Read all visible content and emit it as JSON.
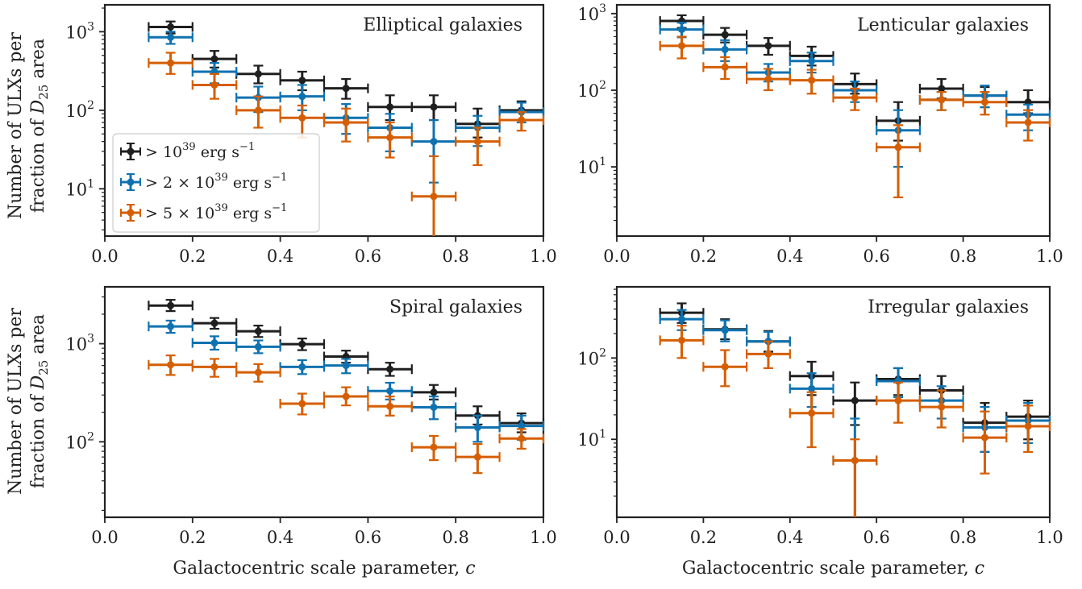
{
  "figure": {
    "ylabel_line1": "Number of ULXs per",
    "ylabel_line2_prefix": "fraction of ",
    "ylabel_line2_symbol": "D",
    "ylabel_line2_sub": "25",
    "ylabel_line2_suffix": " area"
  },
  "legend": [
    {
      "base": "> 10",
      "exp": "39",
      "unit": " erg s",
      "unit_exp": "−1"
    },
    {
      "base": "> 2 × 10",
      "exp": "39",
      "unit": " erg s",
      "unit_exp": "−1"
    },
    {
      "base": "> 5 × 10",
      "exp": "39",
      "unit": " erg s",
      "unit_exp": "−1"
    }
  ],
  "colors": {
    "black": "#1f1f1f",
    "blue": "#0f72b0",
    "orange": "#d55e00"
  },
  "chart_data": [
    {
      "type": "scatter",
      "title": "Elliptical galaxies",
      "xlabel": "",
      "ylabel": "Number of ULXs per fraction of D25 area",
      "x_ticks": [
        "0.0",
        "0.2",
        "0.4",
        "0.6",
        "0.8",
        "1.0"
      ],
      "xlim": [
        0,
        1
      ],
      "ylim": [
        2.5,
        2200
      ],
      "y_scale": "log",
      "y_ticks": [
        {
          "value": 10,
          "exp": "1"
        },
        {
          "value": 100,
          "exp": "2"
        },
        {
          "value": 1000,
          "exp": "3"
        }
      ],
      "legend_position": "middle-left",
      "series": [
        {
          "name": "> 10^39 erg s^-1",
          "color": "black",
          "x": [
            0.15,
            0.25,
            0.35,
            0.45,
            0.55,
            0.65,
            0.75,
            0.85,
            0.95
          ],
          "y": [
            1150,
            450,
            290,
            240,
            190,
            110,
            110,
            67,
            100
          ],
          "lo": [
            950,
            350,
            220,
            180,
            140,
            75,
            75,
            45,
            75
          ],
          "hi": [
            1350,
            570,
            370,
            310,
            250,
            155,
            155,
            105,
            130
          ]
        },
        {
          "name": "> 2 × 10^39 erg s^-1",
          "color": "blue",
          "x": [
            0.15,
            0.25,
            0.35,
            0.45,
            0.55,
            0.65,
            0.75,
            0.85,
            0.95
          ],
          "y": [
            850,
            310,
            145,
            150,
            80,
            60,
            40,
            60,
            95
          ],
          "lo": [
            700,
            220,
            95,
            100,
            50,
            30,
            12,
            35,
            70
          ],
          "hi": [
            1000,
            400,
            200,
            210,
            120,
            90,
            75,
            85,
            125
          ]
        },
        {
          "name": "> 5 × 10^39 erg s^-1",
          "color": "orange",
          "x": [
            0.15,
            0.25,
            0.35,
            0.45,
            0.55,
            0.65,
            0.75,
            0.85,
            0.95
          ],
          "y": [
            400,
            210,
            100,
            80,
            70,
            45,
            8,
            40,
            75
          ],
          "lo": [
            290,
            140,
            60,
            45,
            40,
            25,
            2,
            20,
            55
          ],
          "hi": [
            540,
            290,
            150,
            115,
            105,
            70,
            26,
            60,
            95
          ]
        }
      ]
    },
    {
      "type": "scatter",
      "title": "Lenticular galaxies",
      "xlabel": "",
      "ylabel": "",
      "x_ticks": [
        "0.0",
        "0.2",
        "0.4",
        "0.6",
        "0.8",
        "1.0"
      ],
      "xlim": [
        0,
        1
      ],
      "ylim": [
        1.25,
        1300
      ],
      "y_scale": "log",
      "y_ticks": [
        {
          "value": 10,
          "exp": "1"
        },
        {
          "value": 100,
          "exp": "2"
        },
        {
          "value": 1000,
          "exp": "3"
        }
      ],
      "series": [
        {
          "name": "> 10^39 erg s^-1",
          "color": "black",
          "x": [
            0.15,
            0.25,
            0.35,
            0.45,
            0.55,
            0.65,
            0.75,
            0.85,
            0.95
          ],
          "y": [
            800,
            530,
            380,
            280,
            120,
            40,
            105,
            85,
            70
          ],
          "lo": [
            650,
            420,
            290,
            210,
            90,
            22,
            78,
            60,
            50
          ],
          "hi": [
            950,
            650,
            480,
            370,
            165,
            70,
            140,
            110,
            100
          ]
        },
        {
          "name": "> 2 × 10^39 erg s^-1",
          "color": "blue",
          "x": [
            0.15,
            0.25,
            0.35,
            0.45,
            0.55,
            0.65,
            0.75,
            0.85,
            0.95
          ],
          "y": [
            620,
            340,
            170,
            240,
            100,
            30,
            75,
            85,
            48
          ],
          "lo": [
            490,
            240,
            130,
            170,
            70,
            10,
            55,
            60,
            30
          ],
          "hi": [
            760,
            450,
            220,
            310,
            130,
            55,
            95,
            115,
            65
          ]
        },
        {
          "name": "> 5 × 10^39 erg s^-1",
          "color": "orange",
          "x": [
            0.15,
            0.25,
            0.35,
            0.45,
            0.55,
            0.65,
            0.75,
            0.85,
            0.95
          ],
          "y": [
            380,
            200,
            140,
            135,
            80,
            18,
            75,
            70,
            38
          ],
          "lo": [
            260,
            140,
            100,
            90,
            55,
            4,
            55,
            48,
            22
          ],
          "hi": [
            500,
            270,
            190,
            185,
            105,
            35,
            95,
            95,
            55
          ]
        }
      ]
    },
    {
      "type": "scatter",
      "title": "Spiral galaxies",
      "xlabel": "Galactocentric scale parameter, c",
      "ylabel": "Number of ULXs per fraction of D25 area",
      "x_ticks": [
        "0.0",
        "0.2",
        "0.4",
        "0.6",
        "0.8",
        "1.0"
      ],
      "xlim": [
        0,
        1
      ],
      "ylim": [
        17,
        3800
      ],
      "y_scale": "log",
      "y_ticks": [
        {
          "value": 100,
          "exp": "2"
        },
        {
          "value": 1000,
          "exp": "3"
        }
      ],
      "series": [
        {
          "name": "> 10^39 erg s^-1",
          "color": "black",
          "x": [
            0.15,
            0.25,
            0.35,
            0.45,
            0.55,
            0.65,
            0.75,
            0.85,
            0.95
          ],
          "y": [
            2450,
            1620,
            1340,
            990,
            740,
            550,
            320,
            185,
            155
          ],
          "lo": [
            2150,
            1420,
            1170,
            860,
            640,
            470,
            270,
            150,
            125
          ],
          "hi": [
            2800,
            1830,
            1530,
            1130,
            850,
            640,
            380,
            230,
            195
          ]
        },
        {
          "name": "> 2 × 10^39 erg s^-1",
          "color": "blue",
          "x": [
            0.15,
            0.25,
            0.35,
            0.45,
            0.55,
            0.65,
            0.75,
            0.85,
            0.95
          ],
          "y": [
            1500,
            1020,
            930,
            580,
            600,
            330,
            225,
            140,
            145
          ],
          "lo": [
            1290,
            870,
            800,
            490,
            500,
            270,
            170,
            100,
            105
          ],
          "hi": [
            1720,
            1190,
            1080,
            680,
            700,
            400,
            290,
            185,
            185
          ]
        },
        {
          "name": "> 5 × 10^39 erg s^-1",
          "color": "orange",
          "x": [
            0.15,
            0.25,
            0.35,
            0.45,
            0.55,
            0.65,
            0.75,
            0.85,
            0.95
          ],
          "y": [
            610,
            580,
            510,
            245,
            290,
            230,
            88,
            70,
            108
          ],
          "lo": [
            480,
            460,
            410,
            190,
            235,
            185,
            65,
            48,
            85
          ],
          "hi": [
            760,
            700,
            620,
            310,
            360,
            290,
            115,
            95,
            135
          ]
        }
      ]
    },
    {
      "type": "scatter",
      "title": "Irregular galaxies",
      "xlabel": "Galactocentric scale parameter, c",
      "ylabel": "",
      "x_ticks": [
        "0.0",
        "0.2",
        "0.4",
        "0.6",
        "0.8",
        "1.0"
      ],
      "xlim": [
        0,
        1
      ],
      "ylim": [
        1.1,
        750
      ],
      "y_scale": "log",
      "y_ticks": [
        {
          "value": 10,
          "exp": "1"
        },
        {
          "value": 100,
          "exp": "2"
        }
      ],
      "series": [
        {
          "name": "> 10^39 erg s^-1",
          "color": "black",
          "x": [
            0.15,
            0.25,
            0.35,
            0.45,
            0.55,
            0.65,
            0.75,
            0.85,
            0.95
          ],
          "y": [
            360,
            225,
            160,
            60,
            30,
            55,
            40,
            16,
            19
          ],
          "lo": [
            270,
            170,
            120,
            35,
            15,
            35,
            25,
            7,
            10
          ],
          "hi": [
            470,
            300,
            215,
            90,
            50,
            75,
            60,
            28,
            30
          ]
        },
        {
          "name": "> 2 × 10^39 erg s^-1",
          "color": "blue",
          "x": [
            0.15,
            0.25,
            0.35,
            0.45,
            0.55,
            0.65,
            0.75,
            0.85,
            0.95
          ],
          "y": [
            300,
            220,
            160,
            42,
            5.5,
            52,
            30,
            14,
            17
          ],
          "lo": [
            220,
            160,
            115,
            25,
            1,
            33,
            18,
            7,
            9
          ],
          "hi": [
            390,
            290,
            210,
            65,
            18,
            75,
            45,
            25,
            28
          ]
        },
        {
          "name": "> 5 × 10^39 erg s^-1",
          "color": "orange",
          "x": [
            0.15,
            0.25,
            0.35,
            0.45,
            0.55,
            0.65,
            0.75,
            0.85,
            0.95
          ],
          "y": [
            165,
            78,
            112,
            21,
            5.5,
            30,
            25,
            10.5,
            14.5
          ],
          "lo": [
            100,
            45,
            75,
            8,
            1,
            16,
            14,
            3.8,
            7
          ],
          "hi": [
            250,
            125,
            160,
            38,
            10,
            50,
            40,
            22,
            26
          ]
        }
      ]
    }
  ]
}
